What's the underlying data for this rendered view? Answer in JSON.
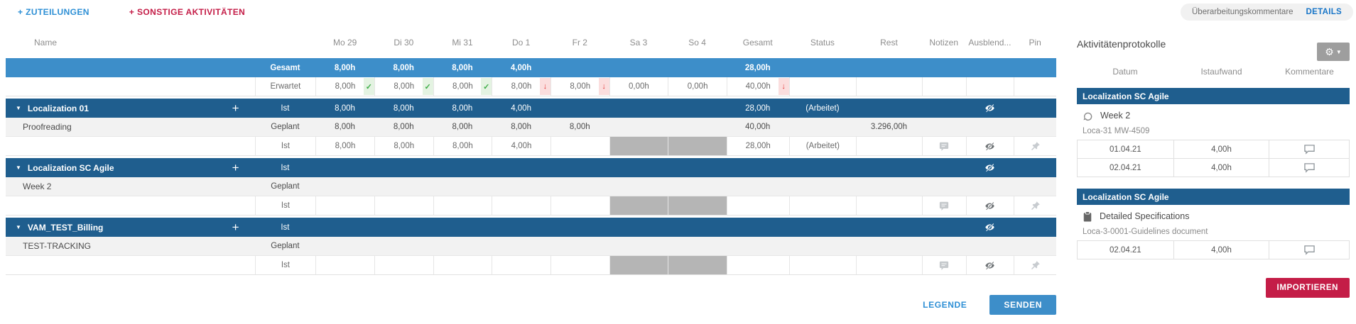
{
  "actions": {
    "add_assignments": "+ ZUTEILUNGEN",
    "add_other_activities": "+ SONSTIGE AKTIVITÄTEN"
  },
  "top_right": {
    "revision_comments": "Überarbeitungskommentare",
    "details": "DETAILS"
  },
  "colors": {
    "accent_blue": "#3d8ec9",
    "dark_blue": "#1f5e8e",
    "link_blue": "#2d8fd5",
    "accent_red": "#c41d47",
    "weekend_gray": "#b5b5b5",
    "check_green": "#3fae49",
    "alert_red": "#e23b3b"
  },
  "icons": {
    "gear": "gear-icon",
    "eye_slash": "eye-slash-icon",
    "note": "note-icon",
    "pin": "pin-icon",
    "sprint": "sprint-icon",
    "clipboard": "clipboard-icon",
    "comment": "comment-icon",
    "caret_down": "▼",
    "plus": "+",
    "check": "✓",
    "arrow_down": "↓"
  },
  "timesheet": {
    "columns": {
      "name": "Name",
      "days": [
        "Mo 29",
        "Di 30",
        "Mi 31",
        "Do 1",
        "Fr 2",
        "Sa 3",
        "So 4"
      ],
      "gesamt": "Gesamt",
      "status": "Status",
      "rest": "Rest",
      "notizen": "Notizen",
      "ausblend": "Ausblend...",
      "pin": "Pin"
    },
    "rows": [
      {
        "kind": "summary",
        "name": "",
        "label": "Gesamt",
        "days": [
          "8,00h",
          "8,00h",
          "8,00h",
          "4,00h",
          "",
          "",
          ""
        ],
        "marks": [
          "",
          "",
          "",
          "",
          "",
          "",
          ""
        ],
        "gesamt": "28,00h",
        "gesamt_mark": "",
        "status": "",
        "rest": ""
      },
      {
        "kind": "expected",
        "name": "",
        "label": "Erwartet",
        "days": [
          "8,00h",
          "8,00h",
          "8,00h",
          "8,00h",
          "8,00h",
          "0,00h",
          "0,00h"
        ],
        "marks": [
          "check",
          "check",
          "check",
          "down",
          "down",
          "",
          ""
        ],
        "gesamt": "40,00h",
        "gesamt_mark": "down",
        "status": "",
        "rest": ""
      },
      {
        "kind": "group",
        "name": "Localization 01",
        "label": "Ist",
        "days": [
          "8,00h",
          "8,00h",
          "8,00h",
          "4,00h",
          "",
          "",
          ""
        ],
        "marks": [
          "",
          "",
          "",
          "",
          "",
          "",
          ""
        ],
        "gesamt": "28,00h",
        "gesamt_mark": "",
        "status": "(Arbeitet)",
        "rest": ""
      },
      {
        "kind": "task",
        "name": "Proofreading",
        "label": "Geplant",
        "days": [
          "8,00h",
          "8,00h",
          "8,00h",
          "8,00h",
          "8,00h",
          "",
          ""
        ],
        "marks": [
          "",
          "",
          "",
          "",
          "",
          "",
          ""
        ],
        "gesamt": "40,00h",
        "gesamt_mark": "",
        "status": "",
        "rest": "3.296,00h"
      },
      {
        "kind": "ist",
        "name": "",
        "label": "Ist",
        "days": [
          "8,00h",
          "8,00h",
          "8,00h",
          "4,00h",
          "",
          "",
          ""
        ],
        "marks": [
          "",
          "",
          "",
          "",
          "",
          "",
          ""
        ],
        "gesamt": "28,00h",
        "gesamt_mark": "",
        "status": "(Arbeitet)",
        "rest": ""
      },
      {
        "kind": "group",
        "name": "Localization SC Agile",
        "label": "Ist",
        "days": [
          "",
          "",
          "",
          "",
          "",
          "",
          ""
        ],
        "marks": [
          "",
          "",
          "",
          "",
          "",
          "",
          ""
        ],
        "gesamt": "",
        "gesamt_mark": "",
        "status": "",
        "rest": ""
      },
      {
        "kind": "task",
        "name": "Week 2",
        "label": "Geplant",
        "days": [
          "",
          "",
          "",
          "",
          "",
          "",
          ""
        ],
        "marks": [
          "",
          "",
          "",
          "",
          "",
          "",
          ""
        ],
        "gesamt": "",
        "gesamt_mark": "",
        "status": "",
        "rest": ""
      },
      {
        "kind": "ist",
        "name": "",
        "label": "Ist",
        "days": [
          "",
          "",
          "",
          "",
          "",
          "",
          ""
        ],
        "marks": [
          "",
          "",
          "",
          "",
          "",
          "",
          ""
        ],
        "gesamt": "",
        "gesamt_mark": "",
        "status": "",
        "rest": ""
      },
      {
        "kind": "group",
        "name": "VAM_TEST_Billing",
        "label": "Ist",
        "days": [
          "",
          "",
          "",
          "",
          "",
          "",
          ""
        ],
        "marks": [
          "",
          "",
          "",
          "",
          "",
          "",
          ""
        ],
        "gesamt": "",
        "gesamt_mark": "",
        "status": "",
        "rest": ""
      },
      {
        "kind": "task",
        "name": "TEST-TRACKING",
        "label": "Geplant",
        "days": [
          "",
          "",
          "",
          "",
          "",
          "",
          ""
        ],
        "marks": [
          "",
          "",
          "",
          "",
          "",
          "",
          ""
        ],
        "gesamt": "",
        "gesamt_mark": "",
        "status": "",
        "rest": ""
      },
      {
        "kind": "ist",
        "name": "",
        "label": "Ist",
        "days": [
          "",
          "",
          "",
          "",
          "",
          "",
          ""
        ],
        "marks": [
          "",
          "",
          "",
          "",
          "",
          "",
          ""
        ],
        "gesamt": "",
        "gesamt_mark": "",
        "status": "",
        "rest": ""
      }
    ],
    "footer": {
      "legend": "LEGENDE",
      "send": "SENDEN"
    }
  },
  "activity_panel": {
    "title": "Aktivitätenprotokolle",
    "columns": [
      "Datum",
      "Istaufwand",
      "Kommentare"
    ],
    "groups": [
      {
        "project": "Localization SC Agile",
        "item": "Week 2",
        "item_icon": "sprint-icon",
        "code": "Loca-31 MW-4509",
        "entries": [
          {
            "date": "01.04.21",
            "effort": "4,00h"
          },
          {
            "date": "02.04.21",
            "effort": "4,00h"
          }
        ]
      },
      {
        "project": "Localization SC Agile",
        "item": "Detailed Specifications",
        "item_icon": "clipboard-icon",
        "code": "Loca-3-0001-Guidelines document",
        "entries": [
          {
            "date": "02.04.21",
            "effort": "4,00h"
          }
        ]
      }
    ],
    "import_label": "IMPORTIEREN"
  }
}
